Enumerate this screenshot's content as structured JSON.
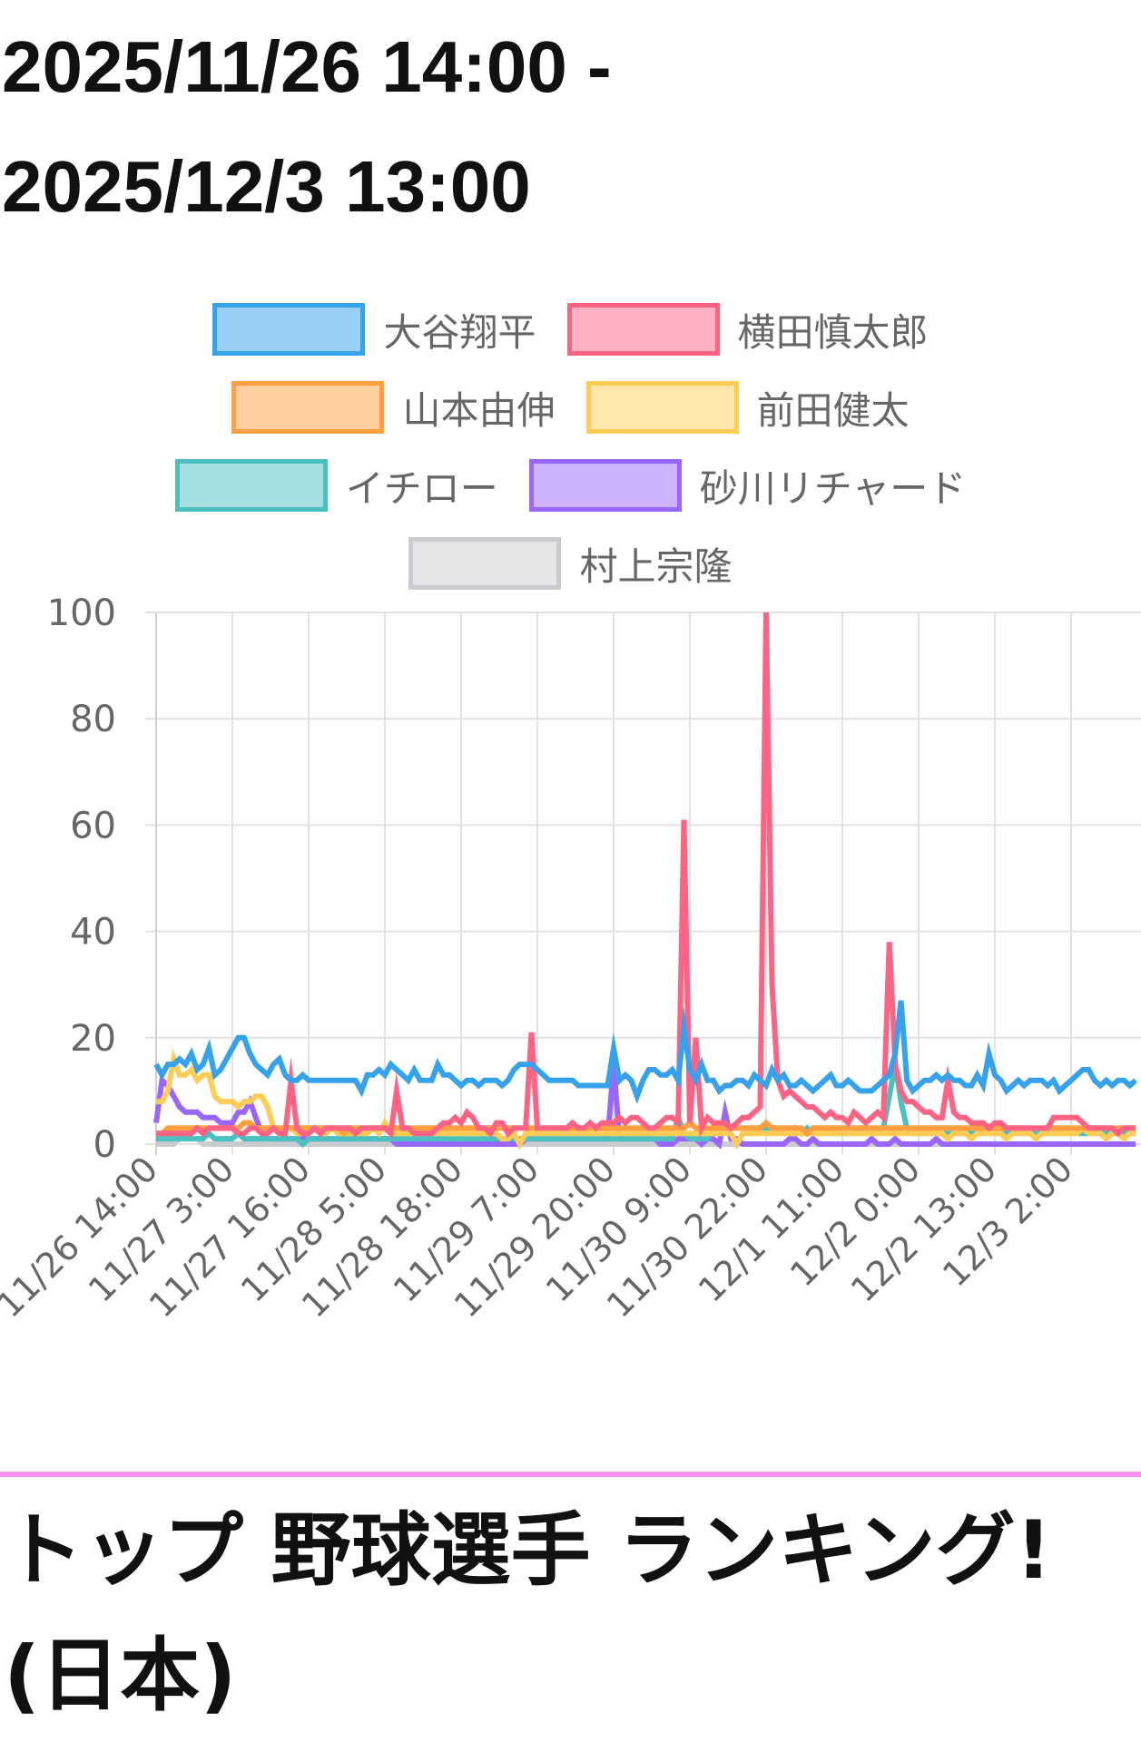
{
  "header": {
    "period_line1": "2025/11/26 14:00 -",
    "period_line2": "2025/12/3 13:00"
  },
  "ranking_title_line1": "トップ 野球選手 ランキング!",
  "ranking_title_line2": "(日本)",
  "divider_color": "#f58ff0",
  "chart_data": {
    "type": "line",
    "legend_position": "top",
    "grid": true,
    "ylim": [
      0,
      100
    ],
    "y_ticks": [
      "0",
      "20",
      "40",
      "60",
      "80",
      "100"
    ],
    "x_start": "11/26 14:00",
    "x_end": "12/3 13:00",
    "x_step": "1 hour",
    "x_tick_labels": [
      "11/26 14:00",
      "11/27 3:00",
      "11/27 16:00",
      "11/28 5:00",
      "11/28 18:00",
      "11/29 7:00",
      "11/29 20:00",
      "11/30 9:00",
      "11/30 22:00",
      "12/1 11:00",
      "12/2 0:00",
      "12/2 13:00",
      "12/3 2:00"
    ],
    "series": [
      {
        "name": "大谷翔平",
        "color": "#36a2eb",
        "values": [
          15,
          13,
          15,
          15,
          16,
          15,
          17,
          14,
          15,
          18,
          13,
          14,
          16,
          18,
          20,
          20,
          17,
          15,
          14,
          13,
          15,
          16,
          13,
          12,
          12,
          13,
          12,
          12,
          12,
          12,
          12,
          12,
          12,
          12,
          12,
          10,
          13,
          13,
          14,
          13,
          15,
          14,
          13,
          12,
          14,
          12,
          12,
          12,
          15,
          13,
          13,
          12,
          11,
          12,
          12,
          11,
          12,
          12,
          12,
          11,
          12,
          14,
          15,
          15,
          15,
          14,
          13,
          12,
          12,
          12,
          12,
          12,
          11,
          11,
          11,
          11,
          11,
          11,
          18,
          12,
          13,
          12,
          9,
          12,
          14,
          14,
          13,
          13,
          14,
          12,
          22,
          14,
          12,
          15,
          12,
          12,
          10,
          11,
          11,
          12,
          12,
          11,
          13,
          12,
          11,
          14,
          12,
          13,
          11,
          11,
          12,
          11,
          10,
          11,
          12,
          13,
          11,
          11,
          12,
          11,
          10,
          10,
          10,
          11,
          12,
          13,
          17,
          27,
          12,
          10,
          11,
          12,
          12,
          13,
          12,
          13,
          12,
          12,
          11,
          11,
          13,
          11,
          17,
          13,
          12,
          10,
          11,
          12,
          11,
          12,
          12,
          12,
          11,
          12,
          10,
          11,
          12,
          13,
          14,
          14,
          12,
          11,
          12,
          11,
          12,
          12,
          11,
          12
        ]
      },
      {
        "name": "横田慎太郎",
        "color": "#ff6384",
        "values": [
          2,
          2,
          2,
          2,
          2,
          2,
          2,
          3,
          2,
          3,
          3,
          3,
          3,
          3,
          2,
          2,
          3,
          3,
          2,
          2,
          3,
          2,
          2,
          12,
          3,
          2,
          2,
          3,
          2,
          3,
          3,
          3,
          3,
          3,
          2,
          3,
          3,
          3,
          3,
          3,
          2,
          10,
          3,
          3,
          2,
          2,
          2,
          2,
          3,
          4,
          4,
          5,
          4,
          6,
          5,
          3,
          3,
          2,
          4,
          4,
          2,
          3,
          3,
          3,
          21,
          3,
          3,
          3,
          3,
          3,
          3,
          4,
          3,
          3,
          4,
          3,
          4,
          4,
          4,
          5,
          4,
          5,
          5,
          4,
          3,
          3,
          4,
          5,
          5,
          4,
          61,
          4,
          20,
          3,
          5,
          4,
          4,
          4,
          3,
          4,
          5,
          5,
          6,
          7,
          100,
          30,
          12,
          9,
          10,
          9,
          8,
          7,
          7,
          6,
          5,
          6,
          5,
          5,
          4,
          6,
          5,
          4,
          5,
          6,
          5,
          38,
          15,
          10,
          8,
          8,
          7,
          6,
          6,
          5,
          5,
          12,
          6,
          5,
          5,
          4,
          4,
          4,
          3,
          4,
          4,
          3,
          3,
          3,
          3,
          3,
          3,
          3,
          3,
          5,
          5,
          5,
          5,
          5,
          4,
          3,
          3,
          3,
          3,
          3,
          2,
          3,
          3,
          3
        ]
      },
      {
        "name": "山本由伸",
        "color": "#ff9f40",
        "values": [
          2,
          2,
          3,
          3,
          3,
          3,
          3,
          3,
          3,
          3,
          3,
          3,
          3,
          3,
          3,
          4,
          4,
          3,
          3,
          3,
          3,
          3,
          3,
          3,
          3,
          3,
          3,
          3,
          3,
          3,
          3,
          3,
          2,
          3,
          3,
          3,
          3,
          3,
          3,
          3,
          3,
          3,
          3,
          3,
          3,
          3,
          3,
          3,
          3,
          3,
          3,
          3,
          3,
          3,
          3,
          3,
          3,
          3,
          3,
          3,
          3,
          3,
          3,
          3,
          3,
          3,
          3,
          3,
          3,
          3,
          3,
          3,
          3,
          3,
          3,
          3,
          3,
          3,
          3,
          3,
          3,
          3,
          3,
          3,
          3,
          3,
          3,
          3,
          3,
          3,
          3,
          4,
          3,
          3,
          3,
          3,
          3,
          3,
          3,
          3,
          3,
          3,
          3,
          3,
          4,
          3,
          3,
          3,
          3,
          3,
          3,
          2,
          3,
          3,
          3,
          3,
          3,
          3,
          3,
          3,
          3,
          3,
          3,
          3,
          3,
          3,
          3,
          3,
          3,
          3,
          3,
          3,
          3,
          3,
          3,
          3,
          3,
          3,
          3,
          3,
          3,
          3,
          3,
          3,
          3,
          3,
          3,
          3,
          3,
          3,
          3,
          3,
          3,
          3,
          3,
          3,
          3,
          3,
          3,
          3,
          3,
          3,
          3,
          3,
          3,
          3,
          3,
          3
        ]
      },
      {
        "name": "前田健太",
        "color": "#ffcd56",
        "values": [
          8,
          8,
          10,
          16,
          13,
          13,
          14,
          12,
          13,
          13,
          9,
          8,
          8,
          8,
          7,
          8,
          8,
          9,
          9,
          7,
          3,
          2,
          3,
          3,
          2,
          2,
          2,
          3,
          2,
          2,
          3,
          2,
          2,
          2,
          2,
          2,
          2,
          3,
          2,
          4,
          2,
          2,
          2,
          2,
          2,
          2,
          3,
          2,
          2,
          2,
          2,
          2,
          2,
          2,
          2,
          2,
          2,
          2,
          2,
          1,
          1,
          2,
          0,
          2,
          2,
          2,
          2,
          2,
          2,
          2,
          2,
          2,
          2,
          2,
          2,
          2,
          2,
          2,
          2,
          2,
          2,
          2,
          2,
          2,
          2,
          2,
          2,
          2,
          2,
          2,
          2,
          2,
          2,
          2,
          2,
          2,
          2,
          2,
          2,
          0,
          2,
          2,
          2,
          2,
          2,
          2,
          2,
          2,
          2,
          2,
          2,
          2,
          2,
          2,
          2,
          2,
          2,
          2,
          2,
          2,
          2,
          2,
          2,
          2,
          2,
          2,
          2,
          2,
          2,
          2,
          2,
          2,
          2,
          2,
          2,
          1,
          2,
          2,
          2,
          1,
          2,
          2,
          2,
          2,
          2,
          1,
          2,
          2,
          2,
          2,
          1,
          2,
          2,
          2,
          2,
          2,
          2,
          2,
          3,
          2,
          2,
          2,
          1,
          2,
          2,
          1,
          2,
          2
        ]
      },
      {
        "name": "イチロー",
        "color": "#4bc0c0",
        "values": [
          1,
          1,
          1,
          1,
          1,
          1,
          1,
          1,
          1,
          2,
          1,
          1,
          1,
          1,
          2,
          1,
          1,
          1,
          1,
          1,
          1,
          1,
          1,
          1,
          1,
          0,
          1,
          1,
          1,
          1,
          1,
          1,
          1,
          1,
          1,
          1,
          1,
          1,
          1,
          1,
          1,
          1,
          1,
          1,
          1,
          1,
          1,
          1,
          1,
          1,
          1,
          1,
          1,
          1,
          1,
          1,
          1,
          1,
          1,
          1,
          1,
          1,
          1,
          1,
          1,
          1,
          1,
          1,
          1,
          1,
          1,
          1,
          1,
          1,
          1,
          1,
          1,
          1,
          1,
          1,
          1,
          1,
          1,
          1,
          1,
          1,
          1,
          1,
          1,
          5,
          2,
          1,
          1,
          1,
          1,
          3,
          3,
          3,
          3,
          3,
          3,
          3,
          3,
          3,
          3,
          3,
          3,
          2,
          2,
          3,
          2,
          3,
          2,
          2,
          2,
          2,
          2,
          2,
          2,
          2,
          2,
          2,
          2,
          2,
          3,
          9,
          15,
          8,
          3,
          2,
          2,
          2,
          2,
          2,
          2,
          2,
          2,
          2,
          2,
          2,
          2,
          2,
          2,
          2,
          2,
          2,
          2,
          2,
          2,
          2,
          2,
          2,
          2,
          2,
          2,
          2,
          2,
          2,
          2,
          2,
          2,
          2,
          2,
          2,
          2,
          2,
          2,
          2
        ]
      },
      {
        "name": "砂川リチャード",
        "color": "#9966ff",
        "values": [
          4,
          12,
          11,
          9,
          7,
          6,
          6,
          6,
          5,
          5,
          5,
          4,
          4,
          4,
          6,
          6,
          8,
          5,
          2,
          1,
          1,
          1,
          1,
          1,
          1,
          1,
          1,
          1,
          1,
          1,
          1,
          1,
          1,
          1,
          1,
          1,
          1,
          1,
          1,
          1,
          1,
          0,
          0,
          0,
          0,
          0,
          0,
          0,
          0,
          0,
          0,
          0,
          0,
          0,
          0,
          0,
          0,
          0,
          0,
          0,
          0,
          0,
          0,
          1,
          1,
          1,
          1,
          1,
          1,
          1,
          1,
          1,
          1,
          1,
          1,
          1,
          1,
          1,
          15,
          1,
          1,
          1,
          1,
          1,
          1,
          1,
          0,
          0,
          0,
          1,
          1,
          1,
          1,
          0,
          1,
          1,
          0,
          6,
          1,
          1,
          0,
          0,
          0,
          0,
          0,
          0,
          0,
          0,
          1,
          1,
          0,
          0,
          1,
          0,
          0,
          0,
          0,
          0,
          0,
          0,
          0,
          0,
          1,
          0,
          0,
          0,
          1,
          0,
          0,
          0,
          0,
          0,
          0,
          1,
          0,
          0,
          0,
          0,
          0,
          0,
          0,
          0,
          0,
          0,
          0,
          0,
          0,
          0,
          0,
          0,
          0,
          0,
          0,
          0,
          0,
          0,
          0,
          0,
          0,
          0,
          0,
          0,
          0,
          0,
          0,
          0,
          0,
          0
        ]
      },
      {
        "name": "村上宗隆",
        "color": "#c9cbcf",
        "values": [
          0,
          0,
          0,
          0,
          1,
          1,
          1,
          1,
          0,
          0,
          0,
          0,
          0,
          0,
          0,
          0,
          0,
          0,
          0,
          0,
          0,
          0,
          0,
          0,
          0,
          0,
          0,
          0,
          0,
          0,
          0,
          0,
          0,
          0,
          0,
          0,
          0,
          0,
          0,
          0,
          0,
          0,
          0,
          0,
          0,
          0,
          0,
          0,
          0,
          0,
          0,
          0,
          0,
          0,
          0,
          0,
          0,
          0,
          0,
          0,
          0,
          0,
          0,
          0,
          0,
          0,
          0,
          0,
          0,
          0,
          0,
          0,
          0,
          0,
          0,
          0,
          0,
          0,
          0,
          0,
          0,
          0,
          0,
          0,
          0,
          0,
          0,
          0,
          0,
          0,
          0,
          0,
          0,
          0,
          0,
          0,
          0,
          0,
          0,
          0,
          0,
          0,
          0,
          0,
          0,
          0,
          0,
          0,
          0,
          0,
          0,
          0,
          0,
          0,
          0,
          0,
          0,
          0,
          0,
          0,
          0,
          0,
          0,
          0,
          0,
          0,
          0,
          0,
          0,
          0,
          0,
          0,
          0,
          0,
          0,
          0,
          0,
          0,
          0,
          0,
          0,
          0,
          0,
          0,
          0,
          0,
          0,
          0,
          0,
          0,
          0,
          0,
          0,
          0,
          0,
          0,
          0,
          0,
          0,
          0,
          0,
          0,
          0,
          0,
          0,
          0,
          0,
          0
        ]
      }
    ]
  }
}
